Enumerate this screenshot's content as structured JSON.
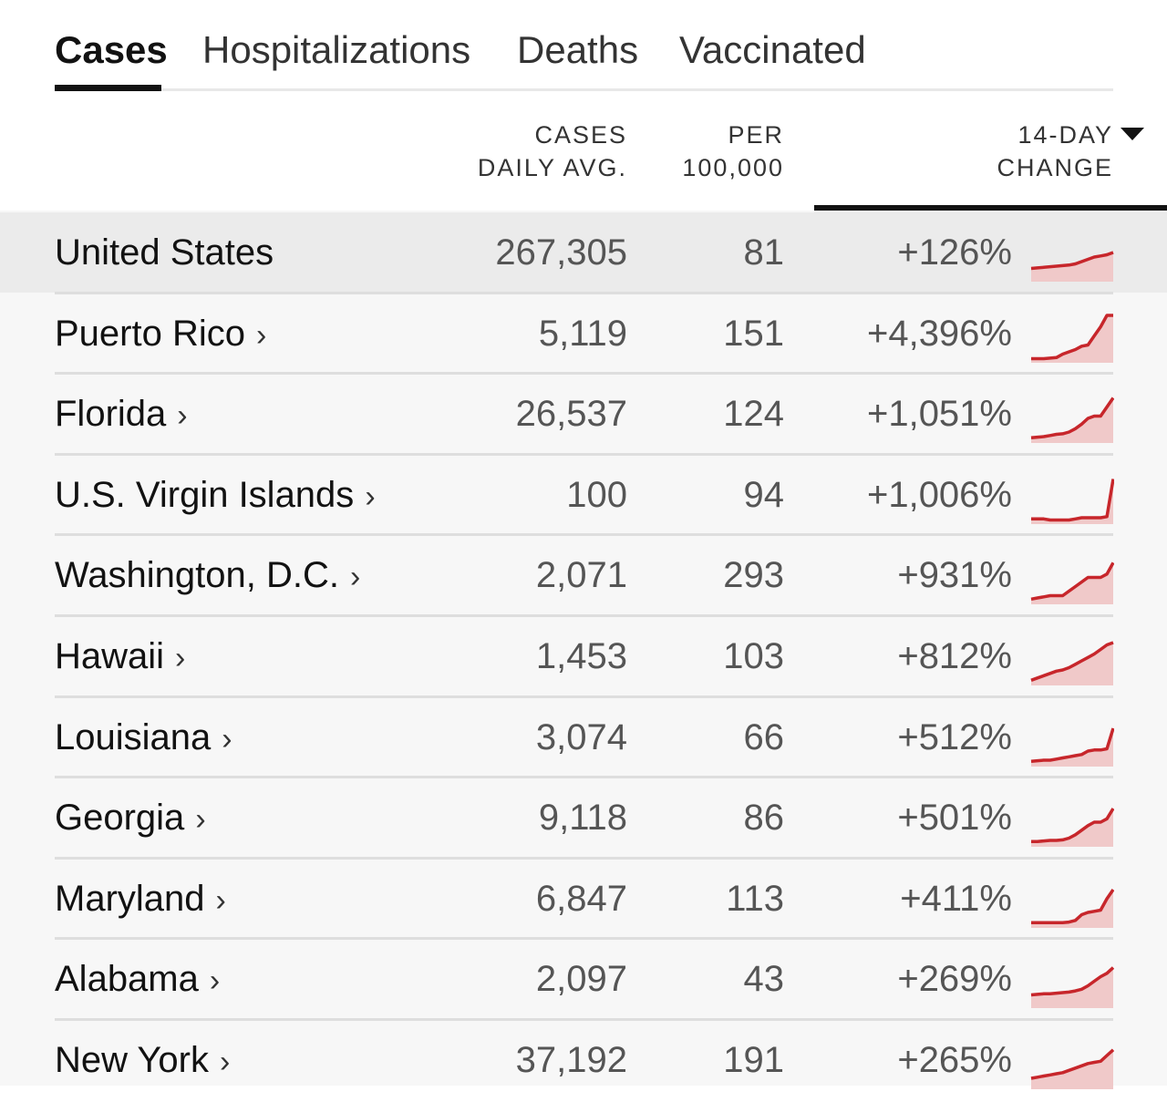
{
  "tabs": [
    {
      "label": "Cases",
      "active": true
    },
    {
      "label": "Hospitalizations",
      "active": false
    },
    {
      "label": "Deaths",
      "active": false
    },
    {
      "label": "Vaccinated",
      "active": false
    }
  ],
  "columns": {
    "cases_line1": "CASES",
    "cases_line2": "DAILY AVG.",
    "per_line1": "PER",
    "per_line2": "100,000",
    "change_line1": "14-DAY",
    "change_line2": "CHANGE",
    "sort_icon": "caret-down-icon"
  },
  "colors": {
    "accent_line": "#c7262b",
    "accent_fill": "#f0c9c9"
  },
  "rows": [
    {
      "name": "United States",
      "link": "",
      "cases": "267,305",
      "per100k": "81",
      "change": "+126%",
      "trend": [
        10,
        10.5,
        11,
        11.5,
        12,
        12.5,
        13,
        14,
        16,
        18,
        20,
        21,
        22,
        24
      ]
    },
    {
      "name": "Puerto Rico",
      "link": "›",
      "cases": "5,119",
      "per100k": "151",
      "change": "+4,396%",
      "trend": [
        2,
        2,
        2,
        2.5,
        3,
        6,
        8,
        10,
        13,
        14,
        22,
        30,
        40,
        40
      ]
    },
    {
      "name": "Florida",
      "link": "›",
      "cases": "26,537",
      "per100k": "124",
      "change": "+1,051%",
      "trend": [
        3,
        3.5,
        4,
        5,
        6,
        6.5,
        8,
        11,
        15,
        20,
        22,
        22,
        30,
        38
      ]
    },
    {
      "name": "U.S. Virgin Islands",
      "link": "›",
      "cases": "100",
      "per100k": "94",
      "change": "+1,006%",
      "trend": [
        3,
        3,
        3,
        2,
        2,
        2,
        2,
        3,
        4,
        4,
        4,
        4,
        5,
        38
      ]
    },
    {
      "name": "Washington, D.C.",
      "link": "›",
      "cases": "2,071",
      "per100k": "293",
      "change": "+931%",
      "trend": [
        3,
        4,
        5,
        6,
        6,
        6,
        10,
        14,
        18,
        22,
        22,
        22,
        25,
        35
      ]
    },
    {
      "name": "Hawaii",
      "link": "›",
      "cases": "1,453",
      "per100k": "103",
      "change": "+812%",
      "trend": [
        3,
        5,
        7,
        9,
        11,
        12,
        14,
        17,
        20,
        23,
        26,
        30,
        34,
        36
      ]
    },
    {
      "name": "Louisiana",
      "link": "›",
      "cases": "3,074",
      "per100k": "66",
      "change": "+512%",
      "trend": [
        3,
        3.5,
        4,
        4,
        5,
        6,
        7,
        8,
        9,
        12,
        13,
        13,
        14,
        32
      ]
    },
    {
      "name": "Georgia",
      "link": "›",
      "cases": "9,118",
      "per100k": "86",
      "change": "+501%",
      "trend": [
        3,
        3,
        3.5,
        4,
        4,
        4.5,
        6,
        9,
        13,
        17,
        20,
        20,
        23,
        32
      ]
    },
    {
      "name": "Maryland",
      "link": "›",
      "cases": "6,847",
      "per100k": "113",
      "change": "+411%",
      "trend": [
        3,
        3,
        3,
        3,
        3,
        3,
        3.5,
        5,
        10,
        12,
        13,
        14,
        24,
        32
      ]
    },
    {
      "name": "Alabama",
      "link": "›",
      "cases": "2,097",
      "per100k": "43",
      "change": "+269%",
      "trend": [
        10,
        10.5,
        11,
        11,
        11.5,
        12,
        12.5,
        13.5,
        15,
        18,
        22,
        26,
        29,
        34
      ]
    },
    {
      "name": "New York",
      "link": "›",
      "cases": "37,192",
      "per100k": "191",
      "change": "+265%",
      "trend": [
        8,
        9,
        10,
        11,
        12,
        13,
        15,
        17,
        19,
        21,
        22,
        23,
        28,
        33
      ]
    }
  ]
}
